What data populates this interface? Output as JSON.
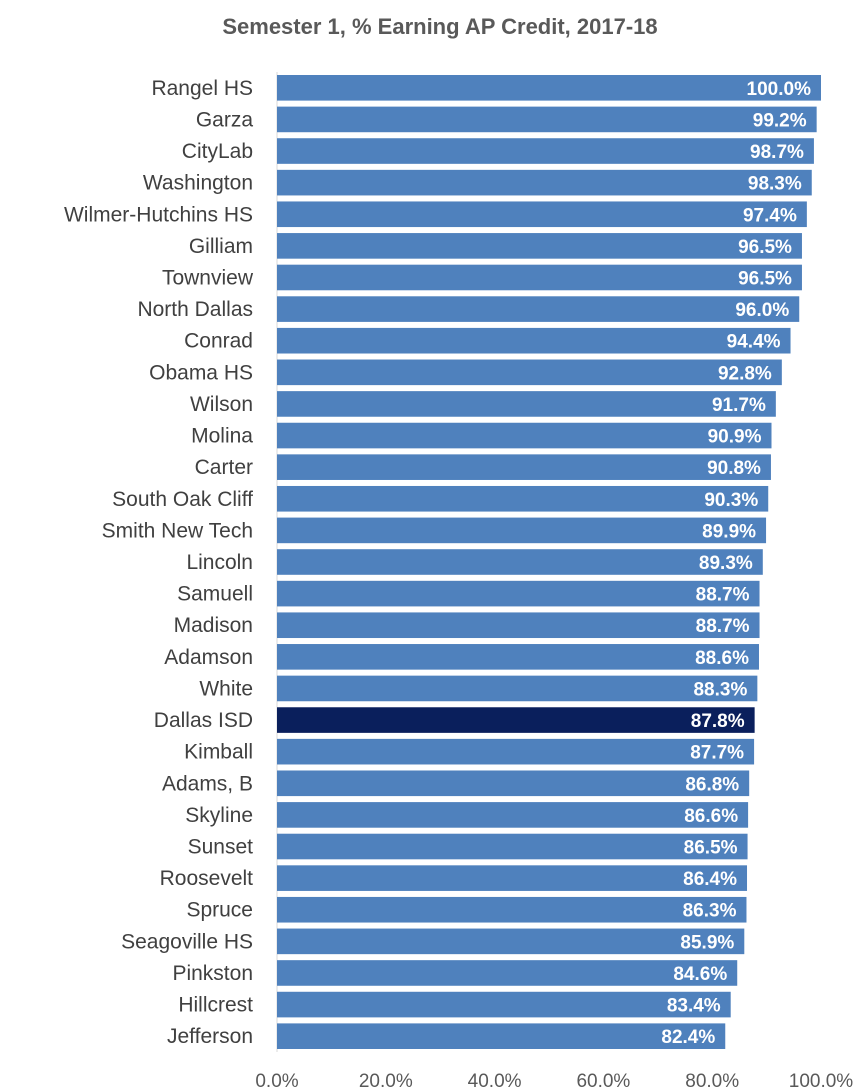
{
  "chart_data": {
    "type": "bar",
    "orientation": "horizontal",
    "title": "Semester 1, % Earning AP Credit, 2017-18",
    "xlabel": "",
    "ylabel": "",
    "xlim": [
      0,
      100
    ],
    "x_ticks": [
      "0.0%",
      "20.0%",
      "40.0%",
      "60.0%",
      "80.0%",
      "100.0%"
    ],
    "grid": false,
    "legend": "none",
    "colors": {
      "bar": "#4f81bd",
      "highlight": "#0a1f5c"
    },
    "highlight_category": "Dallas ISD",
    "categories": [
      "Rangel HS",
      "Garza",
      "CityLab",
      "Washington",
      "Wilmer-Hutchins HS",
      "Gilliam",
      "Townview",
      "North Dallas",
      "Conrad",
      "Obama HS",
      "Wilson",
      "Molina",
      "Carter",
      "South Oak Cliff",
      "Smith New Tech",
      "Lincoln",
      "Samuell",
      "Madison",
      "Adamson",
      "White",
      "Dallas ISD",
      "Kimball",
      "Adams, B",
      "Skyline",
      "Sunset",
      "Roosevelt",
      "Spruce",
      "Seagoville HS",
      "Pinkston",
      "Hillcrest",
      "Jefferson"
    ],
    "values": [
      100.0,
      99.2,
      98.7,
      98.3,
      97.4,
      96.5,
      96.5,
      96.0,
      94.4,
      92.8,
      91.7,
      90.9,
      90.8,
      90.3,
      89.9,
      89.3,
      88.7,
      88.7,
      88.6,
      88.3,
      87.8,
      87.7,
      86.8,
      86.6,
      86.5,
      86.4,
      86.3,
      85.9,
      84.6,
      83.4,
      82.4
    ],
    "data_labels": [
      "100.0%",
      "99.2%",
      "98.7%",
      "98.3%",
      "97.4%",
      "96.5%",
      "96.5%",
      "96.0%",
      "94.4%",
      "92.8%",
      "91.7%",
      "90.9%",
      "90.8%",
      "90.3%",
      "89.9%",
      "89.3%",
      "88.7%",
      "88.7%",
      "88.6%",
      "88.3%",
      "87.8%",
      "87.7%",
      "86.8%",
      "86.6%",
      "86.5%",
      "86.4%",
      "86.3%",
      "85.9%",
      "84.6%",
      "83.4%",
      "82.4%"
    ]
  }
}
